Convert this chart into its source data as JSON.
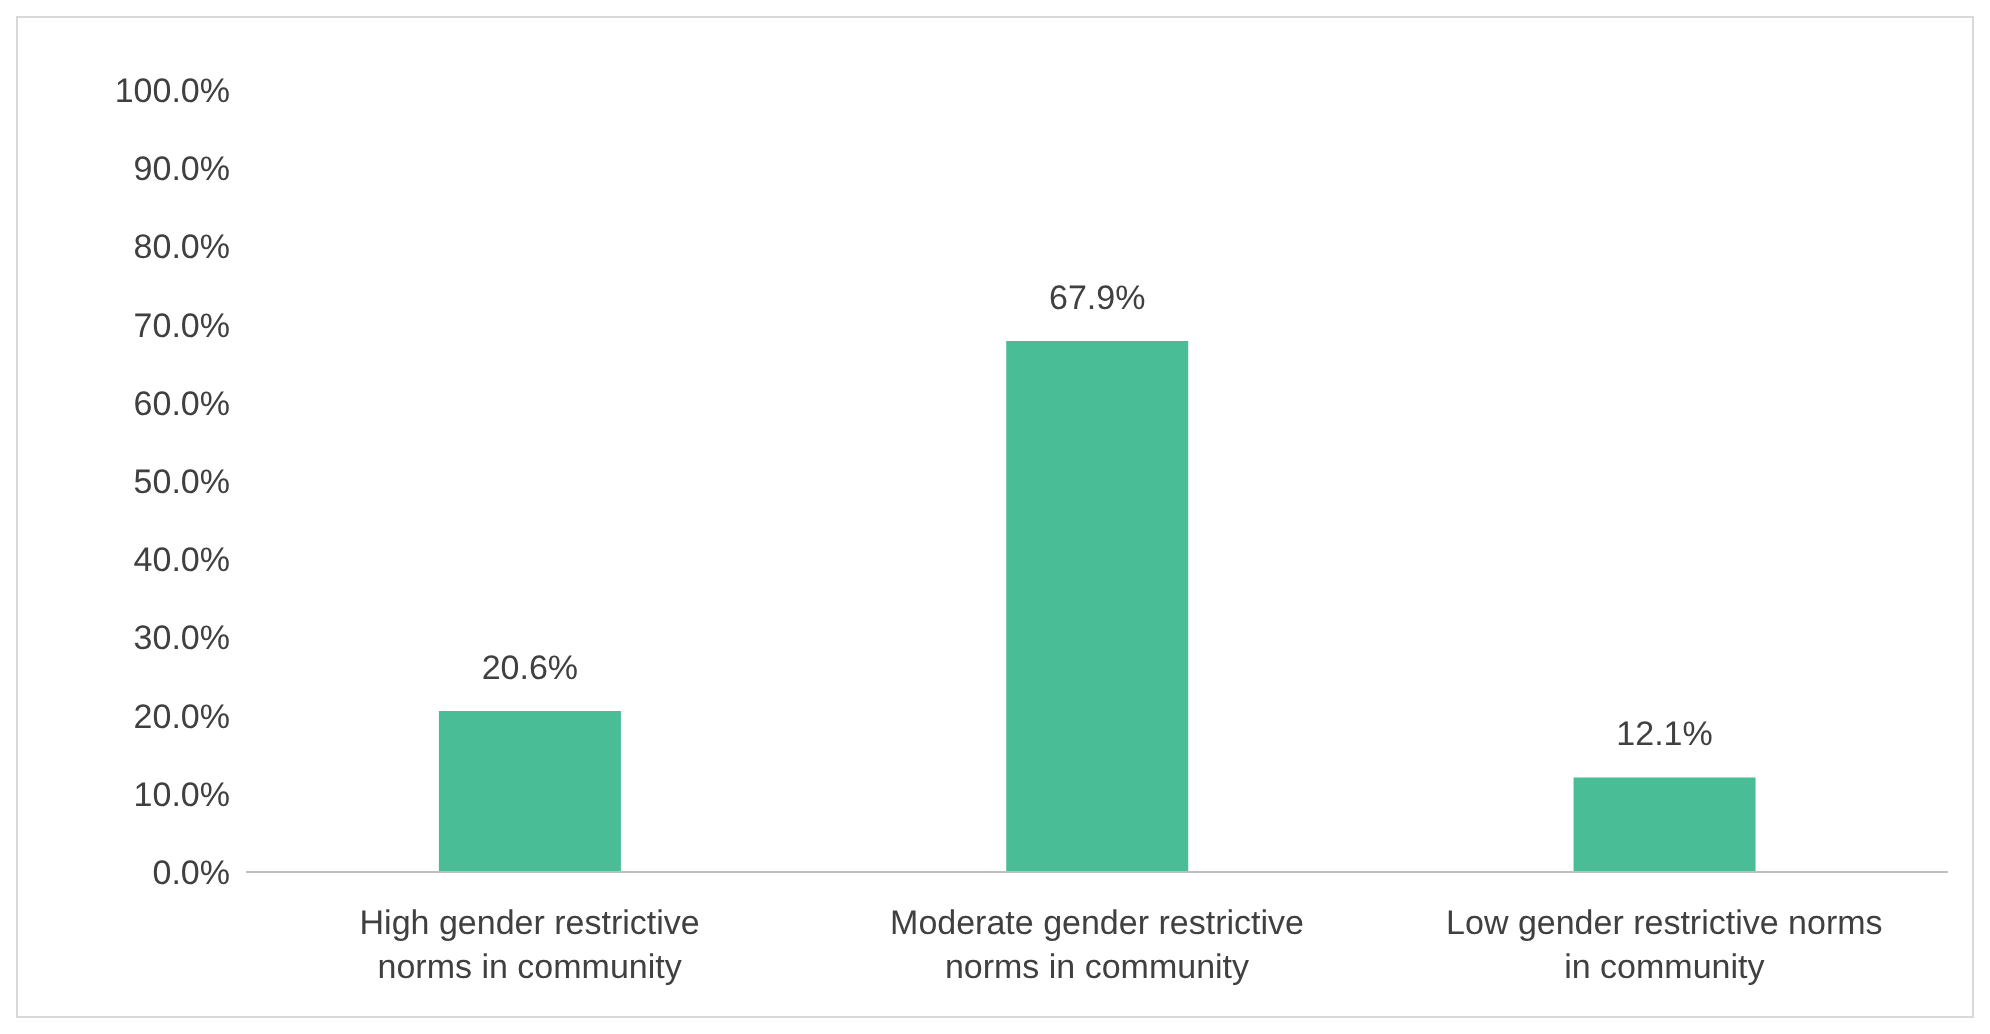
{
  "chart_data": {
    "type": "bar",
    "categories": [
      "High gender restrictive norms in community",
      "Moderate gender restrictive norms in community",
      "Low gender restrictive norms in community"
    ],
    "values": [
      20.6,
      67.9,
      12.1
    ],
    "value_labels": [
      "20.6%",
      "67.9%",
      "12.1%"
    ],
    "color": "#48bd96",
    "ylim": [
      0,
      100
    ],
    "yticks": [
      {
        "value": 0,
        "label": "0.0%"
      },
      {
        "value": 10,
        "label": "10.0%"
      },
      {
        "value": 20,
        "label": "20.0%"
      },
      {
        "value": 30,
        "label": "30.0%"
      },
      {
        "value": 40,
        "label": "40.0%"
      },
      {
        "value": 50,
        "label": "50.0%"
      },
      {
        "value": 60,
        "label": "60.0%"
      },
      {
        "value": 70,
        "label": "70.0%"
      },
      {
        "value": 80,
        "label": "80.0%"
      },
      {
        "value": 90,
        "label": "90.0%"
      },
      {
        "value": 100,
        "label": "100.0%"
      }
    ],
    "grid": false,
    "legend": false
  }
}
